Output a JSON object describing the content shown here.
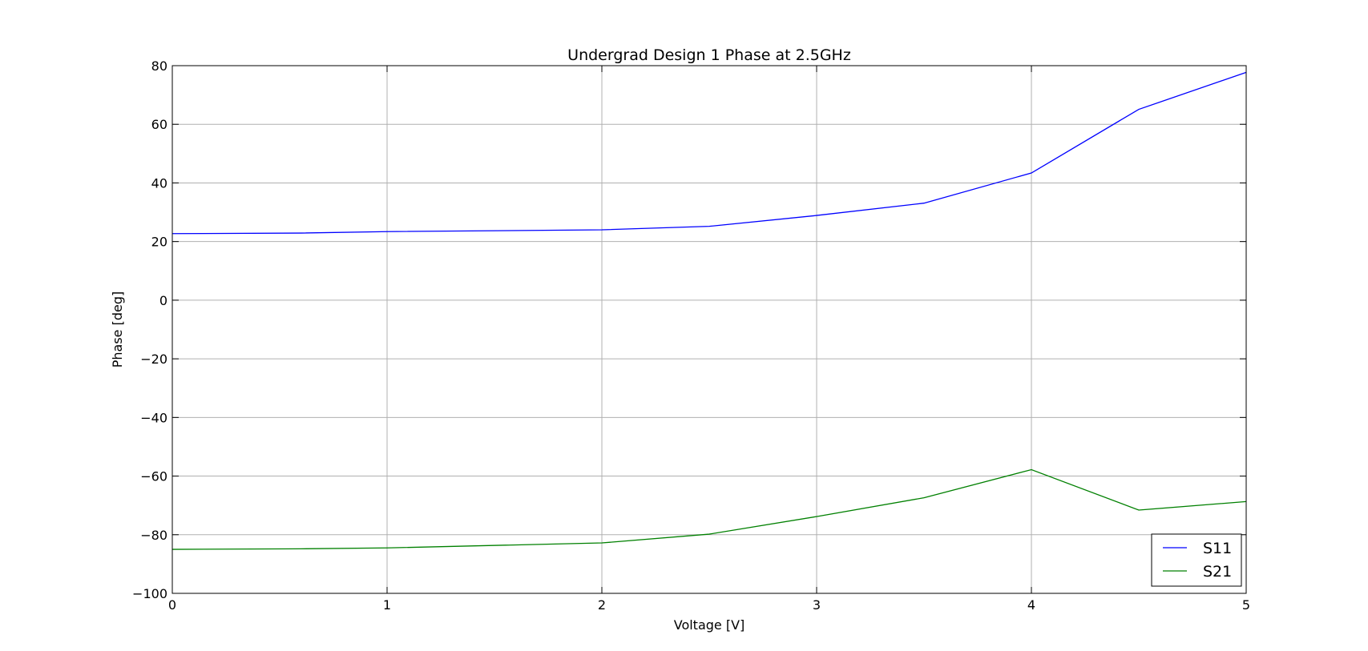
{
  "chart_data": {
    "type": "line",
    "title": "Undergrad Design 1 Phase at 2.5GHz",
    "xlabel": "Voltage [V]",
    "ylabel": "Phase [deg]",
    "xlim": [
      0,
      5
    ],
    "ylim": [
      -100,
      80
    ],
    "xticks": [
      0,
      1,
      2,
      3,
      4,
      5
    ],
    "yticks": [
      -100,
      -80,
      -60,
      -40,
      -20,
      0,
      20,
      40,
      60,
      80
    ],
    "grid": true,
    "legend_position": "lower-right",
    "series": [
      {
        "name": "S11",
        "color": "#0000ff",
        "x": [
          0,
          0.6,
          1,
          2,
          2.5,
          3,
          3.5,
          4,
          4.5,
          5
        ],
        "y": [
          22.7,
          22.9,
          23.4,
          24.0,
          25.2,
          28.9,
          33.1,
          43.4,
          65.1,
          77.7
        ]
      },
      {
        "name": "S21",
        "color": "#008000",
        "x": [
          0,
          0.6,
          1,
          2,
          2.5,
          3,
          3.5,
          4,
          4.5,
          5
        ],
        "y": [
          -85.0,
          -84.8,
          -84.5,
          -82.8,
          -79.8,
          -73.8,
          -67.4,
          -57.8,
          -71.6,
          -68.7
        ]
      }
    ]
  }
}
